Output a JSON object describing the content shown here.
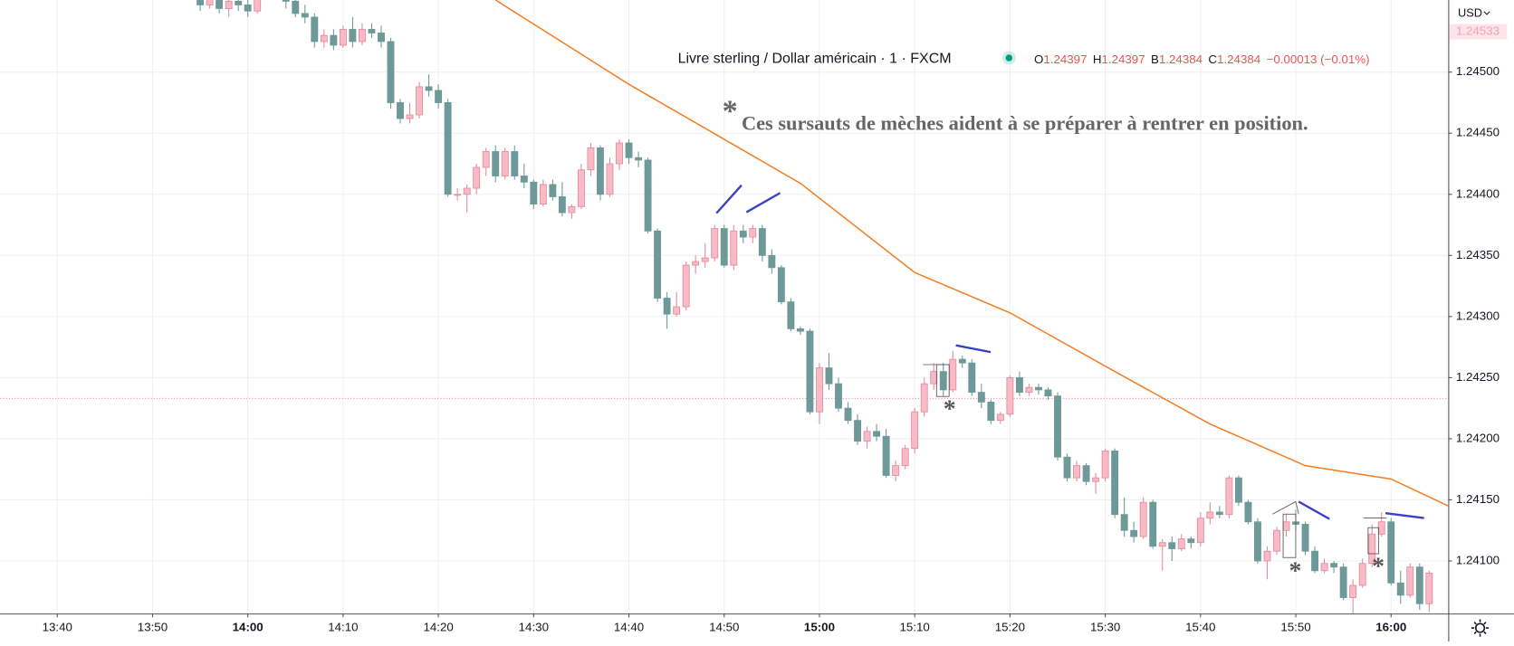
{
  "chart_data": {
    "type": "candlestick",
    "header": {
      "title": "Livre sterling / Dollar américain · 1 · FXCM",
      "ohlc": [
        {
          "key": "O",
          "text": "1.24397"
        },
        {
          "key": "H",
          "text": "1.24397"
        },
        {
          "key": "B",
          "text": "1.24384"
        },
        {
          "key": "C",
          "text": "1.24384"
        }
      ],
      "change": "−0.00013 (−0.01%)"
    },
    "note": {
      "mark": "*",
      "text": "Ces sursauts de mèches aident à se préparer à rentrer en position."
    },
    "markers": [
      "*",
      "*",
      "*"
    ],
    "currency": "USD",
    "up_color": "#f8bbc6",
    "up_border": "#e58a9c",
    "down_color": "#6e9999",
    "x": [
      "13:55",
      "13:56",
      "13:57",
      "13:58",
      "13:59",
      "14:00",
      "14:01",
      "14:02",
      "14:03",
      "14:04",
      "14:05",
      "14:06",
      "14:07",
      "14:08",
      "14:09",
      "14:10",
      "14:11",
      "14:12",
      "14:13",
      "14:14",
      "14:15",
      "14:16",
      "14:17",
      "14:18",
      "14:19",
      "14:20",
      "14:21",
      "14:22",
      "14:23",
      "14:24",
      "14:25",
      "14:26",
      "14:27",
      "14:28",
      "14:29",
      "14:30",
      "14:31",
      "14:32",
      "14:33",
      "14:34",
      "14:35",
      "14:36",
      "14:37",
      "14:38",
      "14:39",
      "14:40",
      "14:41",
      "14:42",
      "14:43",
      "14:44",
      "14:45",
      "14:46",
      "14:47",
      "14:48",
      "14:49",
      "14:50",
      "14:51",
      "14:52",
      "14:53",
      "14:54",
      "14:55",
      "14:56",
      "14:57",
      "14:58",
      "14:59",
      "15:00",
      "15:01",
      "15:02",
      "15:03",
      "15:04",
      "15:05",
      "15:06",
      "15:07",
      "15:08",
      "15:09",
      "15:10",
      "15:11",
      "15:12",
      "15:13",
      "15:14",
      "15:15",
      "15:16",
      "15:17",
      "15:18",
      "15:19",
      "15:20",
      "15:21",
      "15:22",
      "15:23",
      "15:24",
      "15:25",
      "15:26",
      "15:27",
      "15:28",
      "15:29",
      "15:30",
      "15:31",
      "15:32",
      "15:33",
      "15:34",
      "15:35",
      "15:36",
      "15:37",
      "15:38",
      "15:39",
      "15:40",
      "15:41",
      "15:42",
      "15:43",
      "15:44",
      "15:45",
      "15:46",
      "15:47",
      "15:48",
      "15:49",
      "15:50",
      "15:51",
      "15:52",
      "15:53",
      "15:54",
      "15:55",
      "15:56",
      "15:57",
      "15:58",
      "15:59",
      "16:00",
      "16:01",
      "16:02",
      "16:03",
      "16:04"
    ],
    "ohlc": [
      [
        1.2456,
        1.24565,
        1.2455,
        1.24555
      ],
      [
        1.24555,
        1.24565,
        1.24552,
        1.2456
      ],
      [
        1.2456,
        1.24565,
        1.24548,
        1.24552
      ],
      [
        1.24552,
        1.24562,
        1.24545,
        1.24558
      ],
      [
        1.24558,
        1.24565,
        1.2455,
        1.24555
      ],
      [
        1.24555,
        1.2456,
        1.24545,
        1.2455
      ],
      [
        1.2455,
        1.2458,
        1.24548,
        1.24575
      ],
      [
        1.24575,
        1.2459,
        1.24565,
        1.2458
      ],
      [
        1.2458,
        1.24585,
        1.2456,
        1.24565
      ],
      [
        1.24565,
        1.2457,
        1.24552,
        1.24558
      ],
      [
        1.24558,
        1.2456,
        1.24545,
        1.24548
      ],
      [
        1.24548,
        1.24555,
        1.2454,
        1.24545
      ],
      [
        1.24545,
        1.24548,
        1.2452,
        1.24525
      ],
      [
        1.24525,
        1.24535,
        1.2452,
        1.2453
      ],
      [
        1.2453,
        1.24535,
        1.24518,
        1.24522
      ],
      [
        1.24522,
        1.24538,
        1.2452,
        1.24535
      ],
      [
        1.24535,
        1.24545,
        1.2452,
        1.24525
      ],
      [
        1.24525,
        1.2454,
        1.24522,
        1.24535
      ],
      [
        1.24535,
        1.2454,
        1.24528,
        1.24532
      ],
      [
        1.24532,
        1.24538,
        1.2452,
        1.24525
      ],
      [
        1.24525,
        1.24528,
        1.2447,
        1.24475
      ],
      [
        1.24475,
        1.24478,
        1.24458,
        1.24462
      ],
      [
        1.24462,
        1.24475,
        1.24458,
        1.24465
      ],
      [
        1.24465,
        1.24492,
        1.24462,
        1.24488
      ],
      [
        1.24488,
        1.24498,
        1.2448,
        1.24485
      ],
      [
        1.24485,
        1.2449,
        1.2447,
        1.24475
      ],
      [
        1.24475,
        1.24478,
        1.24398,
        1.244
      ],
      [
        1.244,
        1.24405,
        1.24395,
        1.244
      ],
      [
        1.244,
        1.24408,
        1.24385,
        1.24405
      ],
      [
        1.24405,
        1.24425,
        1.244,
        1.24422
      ],
      [
        1.24422,
        1.24438,
        1.24415,
        1.24435
      ],
      [
        1.24435,
        1.2444,
        1.2441,
        1.24415
      ],
      [
        1.24415,
        1.24438,
        1.24412,
        1.24435
      ],
      [
        1.24435,
        1.2444,
        1.24412,
        1.24415
      ],
      [
        1.24415,
        1.24425,
        1.24405,
        1.2441
      ],
      [
        1.2441,
        1.24412,
        1.24388,
        1.24392
      ],
      [
        1.24392,
        1.24412,
        1.2439,
        1.24408
      ],
      [
        1.24408,
        1.24412,
        1.24395,
        1.24398
      ],
      [
        1.24398,
        1.2441,
        1.24382,
        1.24385
      ],
      [
        1.24385,
        1.24392,
        1.2438,
        1.2439
      ],
      [
        1.2439,
        1.24425,
        1.24388,
        1.2442
      ],
      [
        1.2442,
        1.24442,
        1.24415,
        1.24438
      ],
      [
        1.24438,
        1.2444,
        1.24395,
        1.244
      ],
      [
        1.244,
        1.2443,
        1.24398,
        1.24425
      ],
      [
        1.24425,
        1.24445,
        1.2442,
        1.24442
      ],
      [
        1.24442,
        1.24445,
        1.24425,
        1.2443
      ],
      [
        1.2443,
        1.24435,
        1.24422,
        1.24428
      ],
      [
        1.24428,
        1.2443,
        1.24368,
        1.2437
      ],
      [
        1.2437,
        1.24372,
        1.24312,
        1.24315
      ],
      [
        1.24315,
        1.2432,
        1.2429,
        1.24302
      ],
      [
        1.24302,
        1.2432,
        1.243,
        1.24308
      ],
      [
        1.24308,
        1.24345,
        1.24305,
        1.24342
      ],
      [
        1.24342,
        1.2435,
        1.24335,
        1.24345
      ],
      [
        1.24345,
        1.2436,
        1.2434,
        1.24348
      ],
      [
        1.24348,
        1.24375,
        1.24345,
        1.24372
      ],
      [
        1.24372,
        1.24375,
        1.2434,
        1.24342
      ],
      [
        1.24342,
        1.24375,
        1.24338,
        1.2437
      ],
      [
        1.2437,
        1.24375,
        1.2436,
        1.24365
      ],
      [
        1.24365,
        1.24375,
        1.2436,
        1.24372
      ],
      [
        1.24372,
        1.24375,
        1.24345,
        1.2435
      ],
      [
        1.2435,
        1.24355,
        1.24335,
        1.2434
      ],
      [
        1.2434,
        1.24342,
        1.2431,
        1.24312
      ],
      [
        1.24312,
        1.24315,
        1.24288,
        1.2429
      ],
      [
        1.2429,
        1.24292,
        1.24285,
        1.24288
      ],
      [
        1.24288,
        1.2429,
        1.2422,
        1.24222
      ],
      [
        1.24222,
        1.24262,
        1.24212,
        1.24258
      ],
      [
        1.24258,
        1.2427,
        1.2424,
        1.24245
      ],
      [
        1.24245,
        1.2425,
        1.24222,
        1.24225
      ],
      [
        1.24225,
        1.2423,
        1.24212,
        1.24215
      ],
      [
        1.24215,
        1.2422,
        1.24195,
        1.24198
      ],
      [
        1.24198,
        1.2421,
        1.24192,
        1.24206
      ],
      [
        1.24206,
        1.24212,
        1.24198,
        1.24202
      ],
      [
        1.24202,
        1.24208,
        1.24168,
        1.2417
      ],
      [
        1.2417,
        1.24182,
        1.24165,
        1.24178
      ],
      [
        1.24178,
        1.24195,
        1.24175,
        1.24192
      ],
      [
        1.24192,
        1.24225,
        1.24188,
        1.24222
      ],
      [
        1.24222,
        1.2425,
        1.24218,
        1.24245
      ],
      [
        1.24245,
        1.24262,
        1.2424,
        1.24255
      ],
      [
        1.24255,
        1.24262,
        1.24235,
        1.2424
      ],
      [
        1.2424,
        1.24272,
        1.24238,
        1.24265
      ],
      [
        1.24265,
        1.24268,
        1.24258,
        1.24262
      ],
      [
        1.24262,
        1.24265,
        1.24235,
        1.24238
      ],
      [
        1.24238,
        1.24245,
        1.24225,
        1.2423
      ],
      [
        1.2423,
        1.24232,
        1.24212,
        1.24215
      ],
      [
        1.24215,
        1.24222,
        1.24212,
        1.2422
      ],
      [
        1.2422,
        1.24252,
        1.24218,
        1.2425
      ],
      [
        1.2425,
        1.24255,
        1.24235,
        1.24238
      ],
      [
        1.24238,
        1.24245,
        1.24235,
        1.24242
      ],
      [
        1.24242,
        1.24245,
        1.24236,
        1.2424
      ],
      [
        1.2424,
        1.24242,
        1.24232,
        1.24235
      ],
      [
        1.24235,
        1.24238,
        1.24182,
        1.24185
      ],
      [
        1.24185,
        1.24188,
        1.24165,
        1.24168
      ],
      [
        1.24168,
        1.24182,
        1.24165,
        1.24178
      ],
      [
        1.24178,
        1.2418,
        1.24162,
        1.24165
      ],
      [
        1.24165,
        1.24172,
        1.24155,
        1.24168
      ],
      [
        1.24168,
        1.24192,
        1.24165,
        1.2419
      ],
      [
        1.2419,
        1.24192,
        1.24135,
        1.24138
      ],
      [
        1.24138,
        1.24152,
        1.2412,
        1.24125
      ],
      [
        1.24125,
        1.24132,
        1.24115,
        1.2412
      ],
      [
        1.2412,
        1.24152,
        1.24118,
        1.24148
      ],
      [
        1.24148,
        1.2415,
        1.2411,
        1.24112
      ],
      [
        1.24112,
        1.24118,
        1.24092,
        1.24115
      ],
      [
        1.24115,
        1.2412,
        1.241,
        1.2411
      ],
      [
        1.2411,
        1.24122,
        1.24108,
        1.24118
      ],
      [
        1.24118,
        1.2412,
        1.2411,
        1.24115
      ],
      [
        1.24115,
        1.2414,
        1.24112,
        1.24135
      ],
      [
        1.24135,
        1.24148,
        1.2413,
        1.2414
      ],
      [
        1.2414,
        1.24145,
        1.24135,
        1.24138
      ],
      [
        1.24138,
        1.2417,
        1.24135,
        1.24168
      ],
      [
        1.24168,
        1.2417,
        1.24145,
        1.24148
      ],
      [
        1.24148,
        1.2415,
        1.2413,
        1.24132
      ],
      [
        1.24132,
        1.24135,
        1.24098,
        1.241
      ],
      [
        1.241,
        1.24112,
        1.24085,
        1.24108
      ],
      [
        1.24108,
        1.24128,
        1.24105,
        1.24125
      ],
      [
        1.24125,
        1.24138,
        1.2412,
        1.24132
      ],
      [
        1.24132,
        1.24142,
        1.24125,
        1.2413
      ],
      [
        1.2413,
        1.24132,
        1.24105,
        1.24108
      ],
      [
        1.24108,
        1.24112,
        1.2409,
        1.24092
      ],
      [
        1.24092,
        1.24102,
        1.2409,
        1.24098
      ],
      [
        1.24098,
        1.241,
        1.2409,
        1.24095
      ],
      [
        1.24095,
        1.24098,
        1.24068,
        1.2407
      ],
      [
        1.2407,
        1.24085,
        1.24055,
        1.2408
      ],
      [
        1.2408,
        1.24102,
        1.24078,
        1.24098
      ],
      [
        1.24098,
        1.2413,
        1.24095,
        1.24122
      ],
      [
        1.24122,
        1.2414,
        1.2412,
        1.24132
      ],
      [
        1.24132,
        1.24135,
        1.2408,
        1.24082
      ],
      [
        1.24082,
        1.24092,
        1.24065,
        1.24072
      ],
      [
        1.24072,
        1.24098,
        1.2407,
        1.24095
      ],
      [
        1.24095,
        1.24098,
        1.2406,
        1.24065
      ],
      [
        1.24065,
        1.24092,
        1.24058,
        1.2409
      ]
    ],
    "moving_average": {
      "color": "#f57c20",
      "x": [
        "14:26",
        "14:40",
        "14:50",
        "14:58",
        "15:10",
        "15:20",
        "15:31",
        "15:41",
        "15:51",
        "16:00",
        "16:06"
      ],
      "values": [
        1.24559,
        1.2449,
        1.24445,
        1.24409,
        1.24336,
        1.24303,
        1.24255,
        1.24212,
        1.24178,
        1.24167,
        1.24145
      ]
    },
    "reference_line": 1.24233,
    "price_marker": 1.24533,
    "ylim": [
      1.24057,
      1.24559
    ],
    "yticks": [
      {
        "value": 1.241,
        "label": "1.24100"
      },
      {
        "value": 1.2415,
        "label": "1.24150"
      },
      {
        "value": 1.242,
        "label": "1.24200"
      },
      {
        "value": 1.2425,
        "label": "1.24250"
      },
      {
        "value": 1.243,
        "label": "1.24300"
      },
      {
        "value": 1.2435,
        "label": "1.24350"
      },
      {
        "value": 1.244,
        "label": "1.24400"
      },
      {
        "value": 1.2445,
        "label": "1.24450"
      },
      {
        "value": 1.245,
        "label": "1.24500"
      }
    ],
    "xlim": [
      "13:34",
      "16:06"
    ],
    "xticks": [
      "13:40",
      "13:50",
      "14:00",
      "14:10",
      "14:20",
      "14:30",
      "14:40",
      "14:50",
      "15:00",
      "15:10",
      "15:20",
      "15:30",
      "15:40",
      "15:50",
      "16:00"
    ],
    "grid": true
  }
}
